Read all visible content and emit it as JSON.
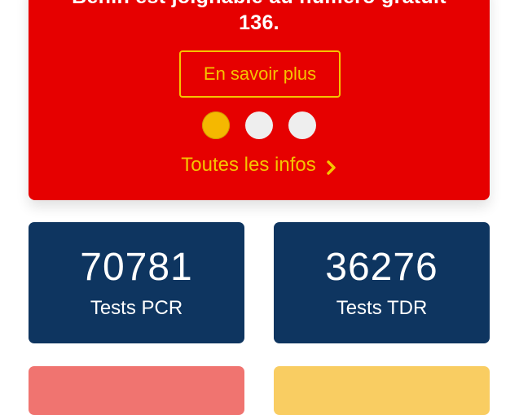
{
  "banner": {
    "text_line1": "Benin est joignable au numéro gratuit",
    "text_line2": "136.",
    "button_label": "En savoir plus",
    "all_info_label": "Toutes les infos",
    "dots_count": 3,
    "active_dot": 1,
    "colors": {
      "background": "#e60000",
      "accent": "#f5c400"
    }
  },
  "stats": [
    {
      "value": "70781",
      "label": "Tests PCR"
    },
    {
      "value": "36276",
      "label": "Tests TDR"
    }
  ],
  "partial_cards": [
    {
      "color": "#f07470"
    },
    {
      "color": "#f9cd62"
    }
  ],
  "colors": {
    "stat_card": "#0e3560"
  }
}
